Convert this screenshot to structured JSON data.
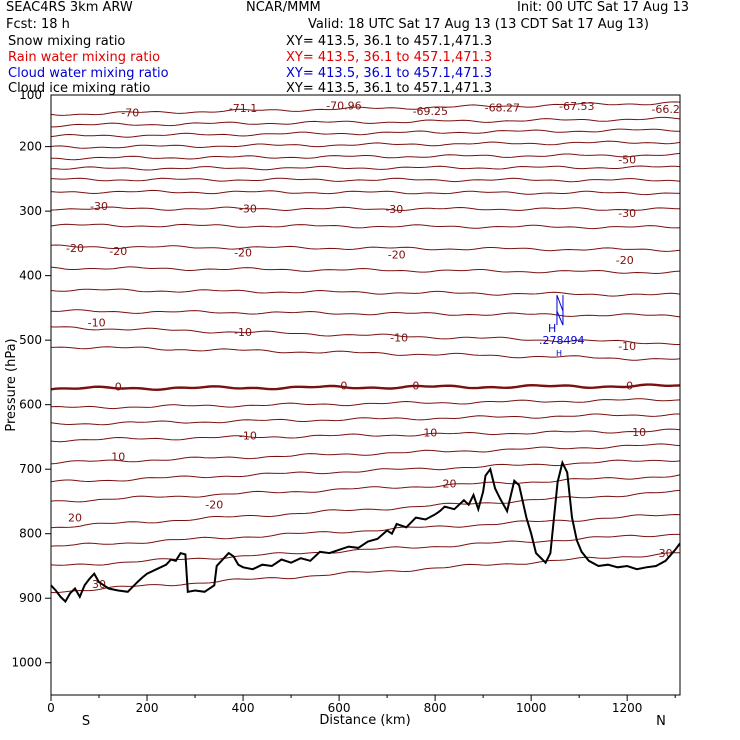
{
  "header": {
    "left_line1": "SEAC4RS  3km ARW",
    "center_line1": "NCAR/MMM",
    "right_line1": "Init: 00 UTC Sat 17 Aug 13",
    "left_line2": "Fcst:   18 h",
    "right_line2": "Valid: 18 UTC Sat 17 Aug 13 (13 CDT Sat 17 Aug 13)",
    "fields": [
      {
        "label": "Snow mixing ratio",
        "xy": "XY= 413.5, 36.1 to 457.1,471.3",
        "color": "#000000"
      },
      {
        "label": "Rain water mixing ratio",
        "xy": "XY= 413.5, 36.1 to 457.1,471.3",
        "color": "#e00000"
      },
      {
        "label": "Cloud water mixing ratio",
        "xy": "XY= 413.5, 36.1 to 457.1,471.3",
        "color": "#0000d0"
      },
      {
        "label": "Cloud ice mixing ratio",
        "xy": "XY= 413.5, 36.1 to 457.1,471.3",
        "color": "#000000"
      }
    ]
  },
  "chart_data": {
    "type": "line",
    "xlabel": "Distance (km)",
    "ylabel": "Pressure (hPa)",
    "xlim": [
      0,
      1310
    ],
    "ylim": [
      1050,
      120
    ],
    "xticks": [
      0,
      200,
      400,
      600,
      800,
      1000,
      1200
    ],
    "yticks": [
      200,
      300,
      400,
      500,
      600,
      700,
      800,
      900,
      1000
    ],
    "yticks_top_label": "100",
    "end_labels": {
      "left": "S",
      "right": "N"
    },
    "contour_color": "#7a1010",
    "isotherms": [
      {
        "level": -70,
        "p_left": 150,
        "p_right": 132
      },
      {
        "level": -65,
        "p_left": 167,
        "p_right": 157
      },
      {
        "level": -60,
        "p_left": 184,
        "p_right": 174
      },
      {
        "level": -55,
        "p_left": 201,
        "p_right": 193
      },
      {
        "level": -50,
        "p_left": 218,
        "p_right": 213
      },
      {
        "level": -45,
        "p_left": 234,
        "p_right": 232
      },
      {
        "level": -40,
        "p_left": 251,
        "p_right": 252
      },
      {
        "level": -35,
        "p_left": 270,
        "p_right": 272
      },
      {
        "level": -30,
        "p_left": 296,
        "p_right": 297
      },
      {
        "level": -25,
        "p_left": 322,
        "p_right": 325
      },
      {
        "level": -20,
        "p_left": 355,
        "p_right": 360
      },
      {
        "level": -15,
        "p_left": 388,
        "p_right": 395
      },
      {
        "level": -10,
        "p_left": 422,
        "p_right": 430
      },
      {
        "level": -5,
        "p_left": 455,
        "p_right": 462
      },
      {
        "level": -10,
        "p_left": 480,
        "p_right": 505
      },
      {
        "level": -5,
        "p_left": 510,
        "p_right": 530
      },
      {
        "level": 0,
        "p_left": 575,
        "p_right": 571
      },
      {
        "level": 5,
        "p_left": 605,
        "p_right": 592
      },
      {
        "level": 10,
        "p_left": 630,
        "p_right": 615
      },
      {
        "level": 15,
        "p_left": 655,
        "p_right": 640
      },
      {
        "level": 10,
        "p_left": 690,
        "p_right": 662
      },
      {
        "level": 15,
        "p_left": 720,
        "p_right": 685
      },
      {
        "level": 20,
        "p_left": 750,
        "p_right": 710
      },
      {
        "level": 20,
        "p_left": 790,
        "p_right": 735
      },
      {
        "level": 25,
        "p_left": 820,
        "p_right": 770
      },
      {
        "level": 30,
        "p_left": 850,
        "p_right": 800
      },
      {
        "level": 30,
        "p_left": 890,
        "p_right": 830
      }
    ],
    "contour_labels": [
      {
        "text": "-70",
        "x": 165,
        "p": 147
      },
      {
        "text": "-71.1",
        "x": 400,
        "p": 140
      },
      {
        "text": "-70.96",
        "x": 610,
        "p": 136
      },
      {
        "text": "-69.25",
        "x": 790,
        "p": 145
      },
      {
        "text": "-68.27",
        "x": 940,
        "p": 139
      },
      {
        "text": "-67.53",
        "x": 1095,
        "p": 137
      },
      {
        "text": "-66.2",
        "x": 1280,
        "p": 142
      },
      {
        "text": "-50",
        "x": 1200,
        "p": 220
      },
      {
        "text": "-30",
        "x": 100,
        "p": 292
      },
      {
        "text": "-30",
        "x": 410,
        "p": 296
      },
      {
        "text": "-30",
        "x": 715,
        "p": 297
      },
      {
        "text": "-30",
        "x": 1200,
        "p": 303
      },
      {
        "text": "-20",
        "x": 50,
        "p": 357
      },
      {
        "text": "-20",
        "x": 140,
        "p": 362
      },
      {
        "text": "-20",
        "x": 400,
        "p": 364
      },
      {
        "text": "-20",
        "x": 720,
        "p": 367
      },
      {
        "text": "-20",
        "x": 1195,
        "p": 376
      },
      {
        "text": "-10",
        "x": 95,
        "p": 473
      },
      {
        "text": "-10",
        "x": 400,
        "p": 487
      },
      {
        "text": "-10",
        "x": 725,
        "p": 496
      },
      {
        "text": "-10",
        "x": 1200,
        "p": 509
      },
      {
        "text": "0",
        "x": 140,
        "p": 572
      },
      {
        "text": "0",
        "x": 610,
        "p": 570
      },
      {
        "text": "0",
        "x": 760,
        "p": 570
      },
      {
        "text": "0",
        "x": 1205,
        "p": 570
      },
      {
        "text": "-10",
        "x": 410,
        "p": 648
      },
      {
        "text": "10",
        "x": 140,
        "p": 680
      },
      {
        "text": "10",
        "x": 790,
        "p": 643
      },
      {
        "text": "10",
        "x": 1225,
        "p": 642
      },
      {
        "text": "-20",
        "x": 340,
        "p": 755
      },
      {
        "text": "20",
        "x": 50,
        "p": 775
      },
      {
        "text": "20",
        "x": 830,
        "p": 722
      },
      {
        "text": "30",
        "x": 100,
        "p": 878
      },
      {
        "text": "30",
        "x": 1280,
        "p": 830
      }
    ],
    "hl_marker": {
      "h": "H",
      "value": ".278494",
      "l": "H",
      "x": 1058,
      "p": 500
    },
    "wind_barb": {
      "x": 1060,
      "p": 455
    },
    "terrain": {
      "x": [
        0,
        10,
        20,
        30,
        40,
        50,
        60,
        70,
        80,
        90,
        100,
        110,
        120,
        140,
        160,
        180,
        190,
        200,
        220,
        240,
        250,
        260,
        270,
        280,
        285,
        300,
        320,
        340,
        345,
        360,
        370,
        380,
        390,
        400,
        420,
        440,
        460,
        480,
        500,
        520,
        540,
        560,
        580,
        600,
        620,
        640,
        660,
        680,
        700,
        710,
        720,
        740,
        760,
        780,
        800,
        810,
        820,
        840,
        860,
        870,
        880,
        890,
        900,
        905,
        915,
        925,
        935,
        950,
        965,
        975,
        990,
        1000,
        1010,
        1030,
        1040,
        1055,
        1065,
        1075,
        1085,
        1095,
        1105,
        1120,
        1140,
        1160,
        1180,
        1200,
        1220,
        1240,
        1260,
        1280,
        1300,
        1310
      ],
      "p": [
        880,
        888,
        898,
        905,
        892,
        885,
        898,
        880,
        870,
        862,
        875,
        880,
        885,
        888,
        890,
        875,
        868,
        862,
        855,
        848,
        840,
        842,
        830,
        832,
        890,
        888,
        890,
        880,
        850,
        838,
        830,
        835,
        848,
        852,
        855,
        848,
        850,
        840,
        845,
        838,
        842,
        828,
        830,
        825,
        820,
        822,
        812,
        808,
        795,
        800,
        785,
        790,
        775,
        778,
        770,
        765,
        758,
        762,
        748,
        755,
        740,
        762,
        735,
        710,
        700,
        730,
        745,
        765,
        718,
        725,
        775,
        800,
        830,
        845,
        830,
        720,
        690,
        705,
        775,
        810,
        828,
        842,
        850,
        848,
        852,
        850,
        855,
        852,
        850,
        842,
        825,
        815
      ]
    }
  }
}
